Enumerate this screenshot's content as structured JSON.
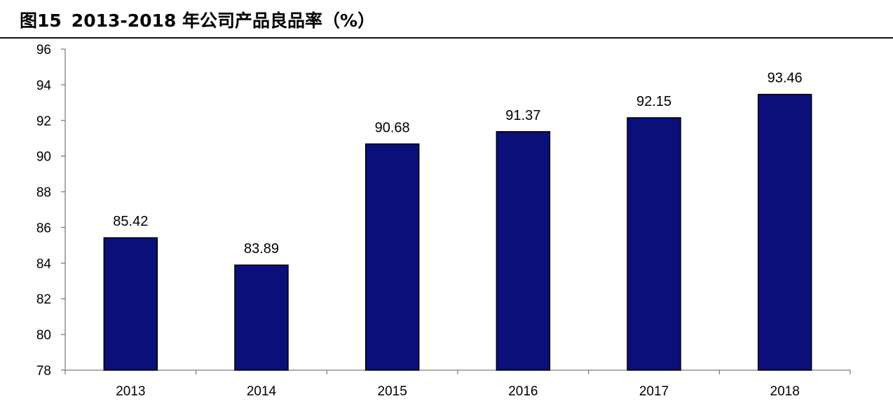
{
  "header": {
    "figure_label": "图15",
    "title": "2013-2018 年公司产品良品率（%）"
  },
  "chart_data": {
    "type": "bar",
    "title": "2013-2018 年公司产品良品率（%）",
    "xlabel": "",
    "ylabel": "",
    "categories": [
      "2013",
      "2014",
      "2015",
      "2016",
      "2017",
      "2018"
    ],
    "values": [
      85.42,
      83.89,
      90.68,
      91.37,
      92.15,
      93.46
    ],
    "value_labels": [
      "85.42",
      "83.89",
      "90.68",
      "91.37",
      "92.15",
      "93.46"
    ],
    "ylim": [
      78,
      96
    ],
    "yticks": [
      "78",
      "80",
      "82",
      "84",
      "86",
      "88",
      "90",
      "92",
      "94",
      "96"
    ],
    "grid": false,
    "legend": "none",
    "bar_color": "#0b0f7a",
    "bar_edge_color": "#000000"
  }
}
